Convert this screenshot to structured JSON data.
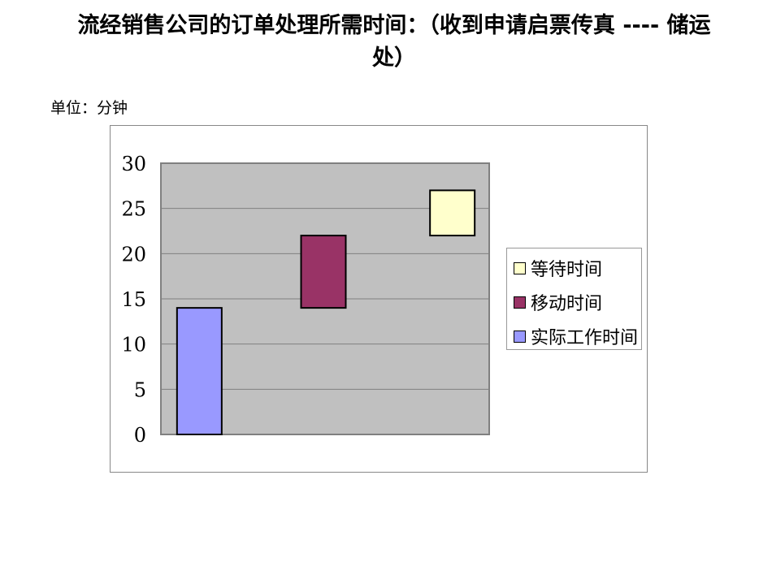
{
  "title": "流经销售公司的订单处理所需时间：（收到申请启票传真 ---- 储运处）",
  "unit": "单位：分钟",
  "chart_data": {
    "type": "bar",
    "stacked": true,
    "categories": [
      "",
      "",
      ""
    ],
    "ylim": [
      0,
      30
    ],
    "yticks": [
      0,
      5,
      10,
      15,
      20,
      25,
      30
    ],
    "grid": true,
    "legend_position": "right",
    "plot_background": "#C0C0C0",
    "series": [
      {
        "name": "",
        "values": [
          0,
          14,
          22
        ],
        "color": "none"
      },
      {
        "name": "实际工作时间",
        "values": [
          14,
          0,
          0
        ],
        "color": "#9999FF"
      },
      {
        "name": "移动时间",
        "values": [
          0,
          8,
          0
        ],
        "color": "#993366"
      },
      {
        "name": "等待时间",
        "values": [
          0,
          0,
          5
        ],
        "color": "#FFFFCC"
      }
    ],
    "legend": [
      "等待时间",
      "移动时间",
      "实际工作时间"
    ]
  }
}
